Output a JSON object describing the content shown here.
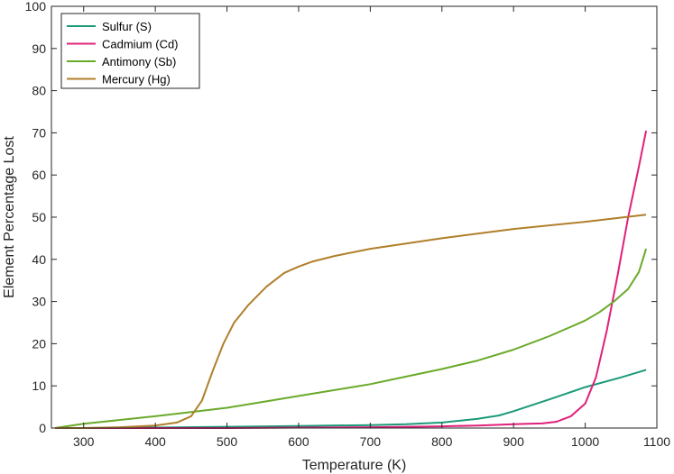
{
  "chart_data": {
    "type": "line",
    "xlabel": "Temperature (K)",
    "ylabel": "Element Percentage Lost",
    "xlim": [
      255,
      1100
    ],
    "ylim": [
      0,
      100
    ],
    "xticks": [
      300,
      400,
      500,
      600,
      700,
      800,
      900,
      1000,
      1100
    ],
    "yticks": [
      0,
      10,
      20,
      30,
      40,
      50,
      60,
      70,
      80,
      90,
      100
    ],
    "grid": false,
    "legend_position": "top-left",
    "series": [
      {
        "name": "Sulfur (S)",
        "color": "#1a9a7a",
        "x": [
          260,
          300,
          400,
          500,
          600,
          700,
          750,
          800,
          850,
          880,
          900,
          950,
          1000,
          1050,
          1085
        ],
        "y": [
          0,
          0,
          0.1,
          0.3,
          0.5,
          0.7,
          0.9,
          1.3,
          2.2,
          3.0,
          4.0,
          6.8,
          9.7,
          12.0,
          13.8
        ]
      },
      {
        "name": "Cadmium (Cd)",
        "color": "#e0207a",
        "x": [
          260,
          400,
          500,
          600,
          700,
          800,
          850,
          900,
          920,
          940,
          960,
          980,
          1000,
          1015,
          1030,
          1045,
          1060,
          1075,
          1085
        ],
        "y": [
          0,
          0,
          0,
          0.1,
          0.2,
          0.4,
          0.6,
          0.9,
          1.0,
          1.1,
          1.5,
          2.8,
          5.8,
          12.0,
          23.0,
          36.0,
          50.0,
          62.0,
          70.5
        ]
      },
      {
        "name": "Antimony (Sb)",
        "color": "#6aaa2a",
        "x": [
          260,
          300,
          400,
          450,
          500,
          550,
          600,
          650,
          700,
          750,
          800,
          850,
          900,
          950,
          1000,
          1020,
          1040,
          1060,
          1075,
          1085
        ],
        "y": [
          0,
          1.0,
          2.8,
          3.8,
          4.8,
          6.2,
          7.6,
          9.0,
          10.4,
          12.2,
          14.0,
          16.0,
          18.6,
          21.8,
          25.5,
          27.5,
          30.0,
          33.0,
          37.0,
          42.5
        ]
      },
      {
        "name": "Mercury (Hg)",
        "color": "#b07f2a",
        "x": [
          260,
          300,
          350,
          400,
          430,
          450,
          465,
          480,
          495,
          510,
          530,
          555,
          580,
          600,
          620,
          650,
          700,
          800,
          900,
          1000,
          1085
        ],
        "y": [
          0,
          0,
          0.2,
          0.6,
          1.3,
          2.8,
          6.5,
          13.5,
          20.0,
          25.0,
          29.2,
          33.5,
          36.8,
          38.3,
          39.5,
          40.8,
          42.5,
          45.0,
          47.2,
          48.9,
          50.6
        ]
      }
    ]
  }
}
